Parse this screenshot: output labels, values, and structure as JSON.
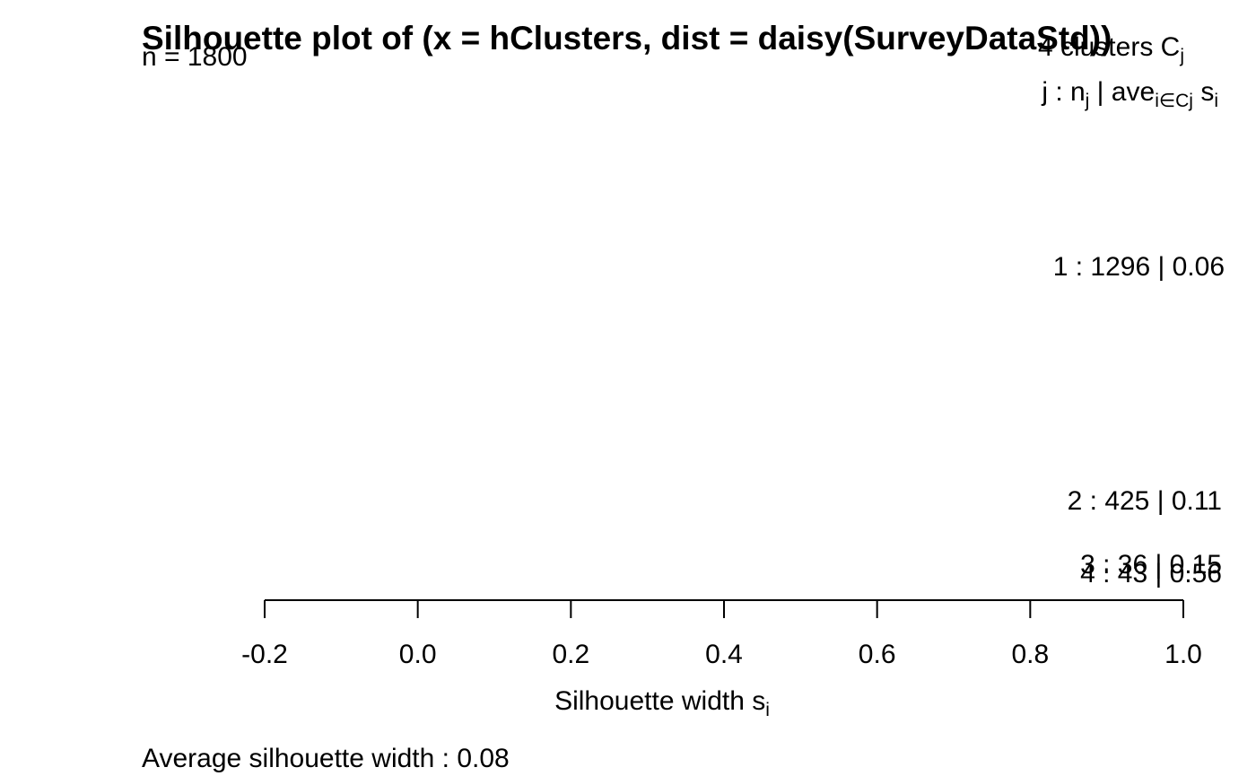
{
  "chart_data": {
    "type": "bar",
    "title": "Silhouette plot of (x = hClusters, dist = daisy(SurveyDataStd))",
    "n_label": "n = 1800",
    "n": 1800,
    "header_clusters": {
      "prefix": "4  clusters  C",
      "sub": "j"
    },
    "header_legend": {
      "j_prefix": "j :  n",
      "j_sub": "j",
      "mid": " | ave",
      "mid_sub": "i∈Cj",
      "s": "  s",
      "s_sub": "i"
    },
    "clusters": [
      {
        "id": 1,
        "n": 1296,
        "avg": 0.06,
        "label": "1 :   1296  |  0.06"
      },
      {
        "id": 2,
        "n": 425,
        "avg": 0.11,
        "label": "2 :   425  |  0.11"
      },
      {
        "id": 3,
        "n": 36,
        "avg": 0.15,
        "label": "3 :   36  |  0.15"
      },
      {
        "id": 4,
        "n": 43,
        "avg": 0.56,
        "label": "4 :   43  |  0.56"
      }
    ],
    "x_ticks": [
      -0.2,
      0.0,
      0.2,
      0.4,
      0.6,
      0.8,
      1.0
    ],
    "x_tick_labels": [
      "-0.2",
      "0.0",
      "0.2",
      "0.4",
      "0.6",
      "0.8",
      "1.0"
    ],
    "xlim": [
      -0.2,
      1.0
    ],
    "xlabel": {
      "main": "Silhouette width s",
      "sub": "i"
    },
    "footer": "Average silhouette width :  0.08",
    "average_width": 0.08,
    "bar_color": "#000000",
    "grid": false
  }
}
